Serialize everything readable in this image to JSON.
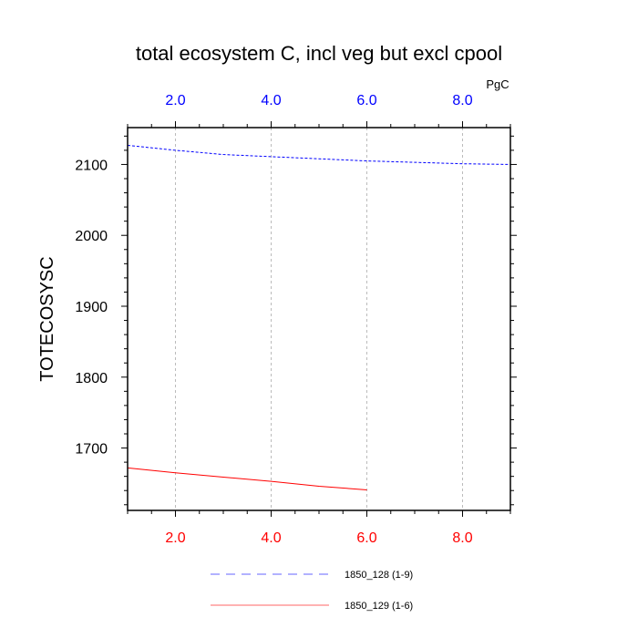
{
  "chart_data": {
    "type": "line",
    "title": "total ecosystem C, incl veg but excl cpool",
    "ylabel": "TOTECOSYSC",
    "units": "PgC",
    "xlim": [
      1,
      9
    ],
    "ylim": [
      1612,
      2152
    ],
    "x_ticks": [
      2,
      4,
      6,
      8
    ],
    "x_tick_labels": [
      "2.0",
      "4.0",
      "6.0",
      "8.0"
    ],
    "y_ticks": [
      1700,
      1800,
      1900,
      2000,
      2100
    ],
    "y_tick_labels": [
      "1700",
      "1800",
      "1900",
      "2000",
      "2100"
    ],
    "y_minor_step": 20,
    "x_minor_step": 0.5,
    "grid": "vertical dashed at x ticks",
    "series": [
      {
        "name": "1850_128 (1-9)",
        "color": "#0000ff",
        "style": "dashed",
        "x": [
          1,
          2,
          3,
          4,
          5,
          6,
          7,
          8,
          9
        ],
        "y": [
          2127,
          2120,
          2114,
          2111,
          2108,
          2105,
          2103,
          2101,
          2100
        ]
      },
      {
        "name": "1850_129 (1-6)",
        "color": "#ff0000",
        "style": "solid",
        "x": [
          1,
          2,
          3,
          4,
          5,
          6
        ],
        "y": [
          1672,
          1665,
          1659,
          1653,
          1646,
          1641
        ]
      }
    ],
    "bottom_axis_color": "#ff0000",
    "top_axis_color": "#0000ff"
  }
}
